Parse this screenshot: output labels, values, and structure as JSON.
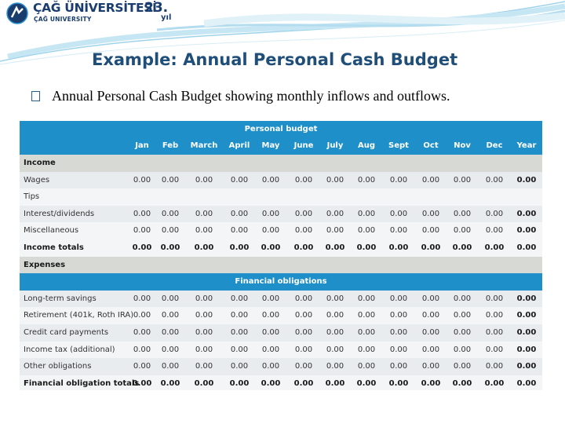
{
  "logo": {
    "name": "ÇAĞ ÜNİVERSİTESİ",
    "subtitle": "ÇAĞ UNIVERSITY",
    "years": "23.",
    "years_suffix": "yıl"
  },
  "slide": {
    "title": "Example: Annual Personal Cash Budget",
    "bullet": "Annual Personal Cash Budget showing monthly inflows and outflows."
  },
  "table": {
    "title": "Personal budget",
    "months": [
      "Jan",
      "Feb",
      "March",
      "April",
      "May",
      "June",
      "July",
      "Aug",
      "Sept",
      "Oct",
      "Nov",
      "Dec",
      "Year"
    ],
    "income_label": "Income",
    "income_rows": [
      {
        "label": "Wages",
        "values": [
          "0.00",
          "0.00",
          "0.00",
          "0.00",
          "0.00",
          "0.00",
          "0.00",
          "0.00",
          "0.00",
          "0.00",
          "0.00",
          "0.00",
          "0.00"
        ]
      },
      {
        "label": "Tips",
        "values": [
          "",
          "",
          "",
          "",
          "",
          "",
          "",
          "",
          "",
          "",
          "",
          "",
          ""
        ]
      },
      {
        "label": "Interest/dividends",
        "values": [
          "0.00",
          "0.00",
          "0.00",
          "0.00",
          "0.00",
          "0.00",
          "0.00",
          "0.00",
          "0.00",
          "0.00",
          "0.00",
          "0.00",
          "0.00"
        ]
      },
      {
        "label": "Miscellaneous",
        "values": [
          "0.00",
          "0.00",
          "0.00",
          "0.00",
          "0.00",
          "0.00",
          "0.00",
          "0.00",
          "0.00",
          "0.00",
          "0.00",
          "0.00",
          "0.00"
        ]
      }
    ],
    "income_totals": {
      "label": "Income totals",
      "values": [
        "0.00",
        "0.00",
        "0.00",
        "0.00",
        "0.00",
        "0.00",
        "0.00",
        "0.00",
        "0.00",
        "0.00",
        "0.00",
        "0.00",
        "0.00"
      ]
    },
    "expenses_label": "Expenses",
    "financial_title": "Financial obligations",
    "financial_rows": [
      {
        "label": "Long-term savings",
        "values": [
          "0.00",
          "0.00",
          "0.00",
          "0.00",
          "0.00",
          "0.00",
          "0.00",
          "0.00",
          "0.00",
          "0.00",
          "0.00",
          "0.00",
          "0.00"
        ]
      },
      {
        "label": "Retirement (401k, Roth IRA)",
        "values": [
          "0.00",
          "0.00",
          "0.00",
          "0.00",
          "0.00",
          "0.00",
          "0.00",
          "0.00",
          "0.00",
          "0.00",
          "0.00",
          "0.00",
          "0.00"
        ]
      },
      {
        "label": "Credit card payments",
        "values": [
          "0.00",
          "0.00",
          "0.00",
          "0.00",
          "0.00",
          "0.00",
          "0.00",
          "0.00",
          "0.00",
          "0.00",
          "0.00",
          "0.00",
          "0.00"
        ]
      },
      {
        "label": "Income tax (additional)",
        "values": [
          "0.00",
          "0.00",
          "0.00",
          "0.00",
          "0.00",
          "0.00",
          "0.00",
          "0.00",
          "0.00",
          "0.00",
          "0.00",
          "0.00",
          "0.00"
        ]
      },
      {
        "label": "Other obligations",
        "values": [
          "0.00",
          "0.00",
          "0.00",
          "0.00",
          "0.00",
          "0.00",
          "0.00",
          "0.00",
          "0.00",
          "0.00",
          "0.00",
          "0.00",
          "0.00"
        ]
      }
    ],
    "financial_totals": {
      "label": "Financial obligation totals",
      "values": [
        "0.00",
        "0.00",
        "0.00",
        "0.00",
        "0.00",
        "0.00",
        "0.00",
        "0.00",
        "0.00",
        "0.00",
        "0.00",
        "0.00",
        "0.00"
      ]
    }
  }
}
